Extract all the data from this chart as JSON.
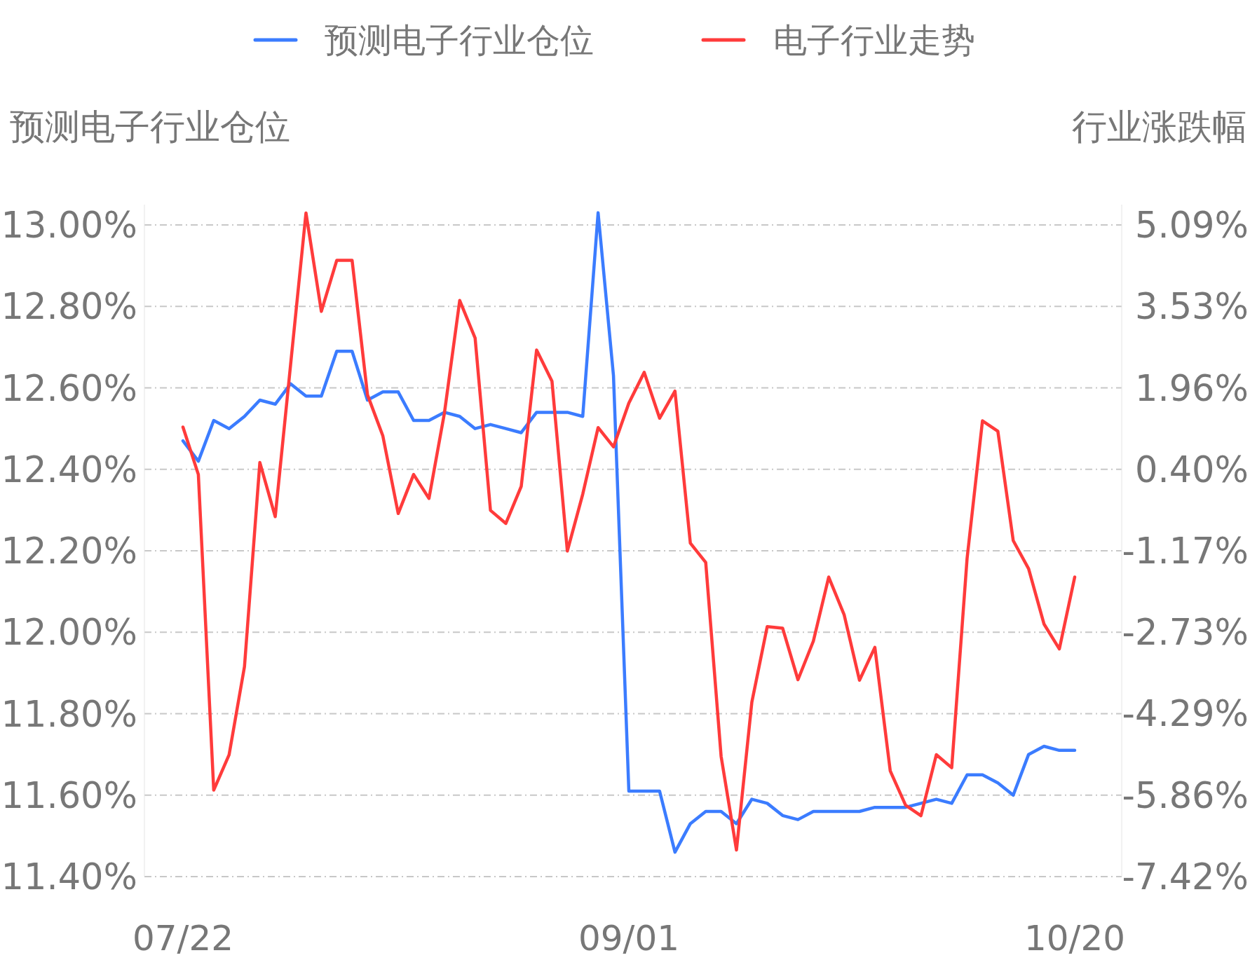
{
  "chart_data": {
    "type": "line",
    "ylabel": "预测电子行业仓位",
    "y2label": "行业涨跌幅",
    "categories": [
      "07/22",
      null,
      null,
      null,
      null,
      null,
      null,
      null,
      null,
      null,
      null,
      null,
      null,
      null,
      null,
      null,
      null,
      null,
      null,
      null,
      null,
      null,
      null,
      null,
      null,
      null,
      null,
      null,
      null,
      "09/01",
      null,
      null,
      null,
      null,
      null,
      null,
      null,
      null,
      null,
      null,
      null,
      null,
      null,
      null,
      null,
      null,
      null,
      null,
      null,
      null,
      null,
      null,
      null,
      null,
      null,
      null,
      null,
      null,
      "10/20"
    ],
    "series": [
      {
        "name": "预测电子行业仓位",
        "color": "#3b7cff",
        "values": [
          12.47,
          12.42,
          12.52,
          12.5,
          12.53,
          12.57,
          12.56,
          12.61,
          12.58,
          12.58,
          12.69,
          12.69,
          12.57,
          12.59,
          12.59,
          12.52,
          12.52,
          12.54,
          12.53,
          12.5,
          12.51,
          12.5,
          12.49,
          12.54,
          12.54,
          12.54,
          12.53,
          13.03,
          12.63,
          11.61,
          11.61,
          11.61,
          11.46,
          11.53,
          11.56,
          11.56,
          11.53,
          11.59,
          11.58,
          11.55,
          11.54,
          11.56,
          11.56,
          11.56,
          11.56,
          11.57,
          11.57,
          11.57,
          11.58,
          11.59,
          11.58,
          11.65,
          11.65,
          11.63,
          11.6,
          11.7,
          11.72,
          11.71,
          11.71
        ]
      },
      {
        "name": "电子行业走势",
        "color": "#ff3b3b",
        "axis": "y2",
        "values": [
          1.21,
          0.3,
          -5.76,
          -5.08,
          -3.39,
          0.53,
          -0.51,
          2.41,
          5.32,
          3.43,
          4.41,
          4.41,
          1.83,
          1.04,
          -0.45,
          0.3,
          -0.16,
          1.47,
          3.64,
          2.92,
          -0.39,
          -0.64,
          0.07,
          2.69,
          2.09,
          -1.17,
          -0.08,
          1.2,
          0.83,
          1.67,
          2.26,
          1.38,
          1.9,
          -1.02,
          -1.39,
          -5.11,
          -6.91,
          -4.07,
          -2.62,
          -2.65,
          -3.64,
          -2.9,
          -1.67,
          -2.39,
          -3.65,
          -3.02,
          -5.39,
          -6.05,
          -6.25,
          -5.08,
          -5.33,
          -1.31,
          1.33,
          1.13,
          -0.97,
          -1.51,
          -2.57,
          -3.05,
          -1.67
        ]
      }
    ],
    "ylim": [
      11.4,
      13.05
    ],
    "yticks": [
      {
        "value": 13.0,
        "label": "13.00%"
      },
      {
        "value": 12.8,
        "label": "12.80%"
      },
      {
        "value": 12.6,
        "label": "12.60%"
      },
      {
        "value": 12.4,
        "label": "12.40%"
      },
      {
        "value": 12.2,
        "label": "12.20%"
      },
      {
        "value": 12.0,
        "label": "12.00%"
      },
      {
        "value": 11.8,
        "label": "11.80%"
      },
      {
        "value": 11.6,
        "label": "11.60%"
      },
      {
        "value": 11.4,
        "label": "11.40%"
      }
    ],
    "y2lim": [
      -7.42,
      5.48
    ],
    "y2ticks": [
      {
        "value": 5.09,
        "label": "5.09%"
      },
      {
        "value": 3.53,
        "label": "3.53%"
      },
      {
        "value": 1.96,
        "label": "1.96%"
      },
      {
        "value": 0.4,
        "label": "0.40%"
      },
      {
        "value": -1.17,
        "label": "-1.17%"
      },
      {
        "value": -2.73,
        "label": "-2.73%"
      },
      {
        "value": -4.29,
        "label": "-4.29%"
      },
      {
        "value": -5.86,
        "label": "-5.86%"
      },
      {
        "value": -7.42,
        "label": "-7.42%"
      }
    ],
    "grid": "y",
    "legend": "top",
    "marker": "none",
    "line_style": "solid"
  }
}
